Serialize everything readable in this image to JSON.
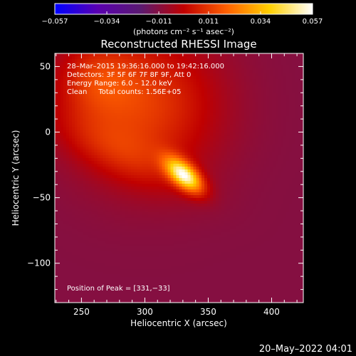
{
  "chart_data": {
    "type": "heatmap",
    "title": "Reconstructed RHESSI Image",
    "xlabel": "Heliocentric X (arcsec)",
    "ylabel": "Heliocentric Y (arcsec)",
    "xlim": [
      229,
      425
    ],
    "ylim": [
      -130,
      60
    ],
    "x_ticks": [
      250,
      300,
      350,
      400
    ],
    "y_ticks": [
      50,
      0,
      -50,
      -100
    ],
    "colorbar": {
      "min": -0.057,
      "max": 0.057,
      "tick_values": [
        -0.057,
        -0.034,
        -0.011,
        0.011,
        0.034,
        0.057
      ],
      "tick_labels": [
        "−0.057",
        "−0.034",
        "−0.011",
        "0.011",
        "0.034",
        "0.057"
      ],
      "units_label": "(photons cm⁻² s⁻¹ asec⁻²)",
      "colors": [
        "#0000ff",
        "#5a00b0",
        "#5a1a70",
        "#c00000",
        "#ff6000",
        "#ffd000",
        "#ffffff"
      ]
    },
    "annotations": [
      "28–Mar–2015 19:36:16.000 to 19:42:16.000",
      "Detectors: 3F 5F 6F 7F 8F 9F, Att 0",
      "Energy Range: 6.0 – 12.0 keV",
      "Clean     Total counts: 1.56E+05"
    ],
    "peak_text": "Position of Peak = [331,−33]",
    "peak_position": [
      331,
      -33
    ],
    "sources": [
      {
        "x": 331,
        "y": -33,
        "sx": 12,
        "sy": 6,
        "angle_deg": -40,
        "amp": 0.059
      },
      {
        "x": 300,
        "y": 20,
        "sx": 40,
        "sy": 38,
        "angle_deg": 0,
        "amp": 0.022
      },
      {
        "x": 262,
        "y": 40,
        "sx": 22,
        "sy": 20,
        "angle_deg": 0,
        "amp": 0.014
      },
      {
        "x": 280,
        "y": -15,
        "sx": 40,
        "sy": 14,
        "angle_deg": -25,
        "amp": 0.01
      }
    ],
    "background_value": -0.011
  },
  "footer": {
    "date": "20–May–2022 04:01"
  }
}
